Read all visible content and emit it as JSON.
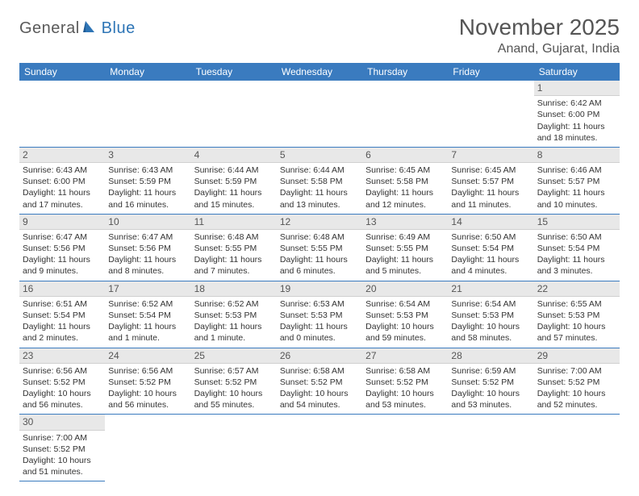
{
  "logo": {
    "general": "General",
    "blue": "Blue"
  },
  "title": "November 2025",
  "location": "Anand, Gujarat, India",
  "colors": {
    "header_bg": "#3a7bbf",
    "header_text": "#ffffff",
    "daynum_bg": "#e8e8e8",
    "border": "#3a7bbf",
    "logo_gray": "#5a5a5a",
    "logo_blue": "#2e75b6"
  },
  "weekdays": [
    "Sunday",
    "Monday",
    "Tuesday",
    "Wednesday",
    "Thursday",
    "Friday",
    "Saturday"
  ],
  "grid": {
    "rows": 6,
    "cols": 7,
    "first_day_col": 6,
    "num_days": 30
  },
  "days": {
    "1": {
      "sunrise": "6:42 AM",
      "sunset": "6:00 PM",
      "daylight": "11 hours and 18 minutes."
    },
    "2": {
      "sunrise": "6:43 AM",
      "sunset": "6:00 PM",
      "daylight": "11 hours and 17 minutes."
    },
    "3": {
      "sunrise": "6:43 AM",
      "sunset": "5:59 PM",
      "daylight": "11 hours and 16 minutes."
    },
    "4": {
      "sunrise": "6:44 AM",
      "sunset": "5:59 PM",
      "daylight": "11 hours and 15 minutes."
    },
    "5": {
      "sunrise": "6:44 AM",
      "sunset": "5:58 PM",
      "daylight": "11 hours and 13 minutes."
    },
    "6": {
      "sunrise": "6:45 AM",
      "sunset": "5:58 PM",
      "daylight": "11 hours and 12 minutes."
    },
    "7": {
      "sunrise": "6:45 AM",
      "sunset": "5:57 PM",
      "daylight": "11 hours and 11 minutes."
    },
    "8": {
      "sunrise": "6:46 AM",
      "sunset": "5:57 PM",
      "daylight": "11 hours and 10 minutes."
    },
    "9": {
      "sunrise": "6:47 AM",
      "sunset": "5:56 PM",
      "daylight": "11 hours and 9 minutes."
    },
    "10": {
      "sunrise": "6:47 AM",
      "sunset": "5:56 PM",
      "daylight": "11 hours and 8 minutes."
    },
    "11": {
      "sunrise": "6:48 AM",
      "sunset": "5:55 PM",
      "daylight": "11 hours and 7 minutes."
    },
    "12": {
      "sunrise": "6:48 AM",
      "sunset": "5:55 PM",
      "daylight": "11 hours and 6 minutes."
    },
    "13": {
      "sunrise": "6:49 AM",
      "sunset": "5:55 PM",
      "daylight": "11 hours and 5 minutes."
    },
    "14": {
      "sunrise": "6:50 AM",
      "sunset": "5:54 PM",
      "daylight": "11 hours and 4 minutes."
    },
    "15": {
      "sunrise": "6:50 AM",
      "sunset": "5:54 PM",
      "daylight": "11 hours and 3 minutes."
    },
    "16": {
      "sunrise": "6:51 AM",
      "sunset": "5:54 PM",
      "daylight": "11 hours and 2 minutes."
    },
    "17": {
      "sunrise": "6:52 AM",
      "sunset": "5:54 PM",
      "daylight": "11 hours and 1 minute."
    },
    "18": {
      "sunrise": "6:52 AM",
      "sunset": "5:53 PM",
      "daylight": "11 hours and 1 minute."
    },
    "19": {
      "sunrise": "6:53 AM",
      "sunset": "5:53 PM",
      "daylight": "11 hours and 0 minutes."
    },
    "20": {
      "sunrise": "6:54 AM",
      "sunset": "5:53 PM",
      "daylight": "10 hours and 59 minutes."
    },
    "21": {
      "sunrise": "6:54 AM",
      "sunset": "5:53 PM",
      "daylight": "10 hours and 58 minutes."
    },
    "22": {
      "sunrise": "6:55 AM",
      "sunset": "5:53 PM",
      "daylight": "10 hours and 57 minutes."
    },
    "23": {
      "sunrise": "6:56 AM",
      "sunset": "5:52 PM",
      "daylight": "10 hours and 56 minutes."
    },
    "24": {
      "sunrise": "6:56 AM",
      "sunset": "5:52 PM",
      "daylight": "10 hours and 56 minutes."
    },
    "25": {
      "sunrise": "6:57 AM",
      "sunset": "5:52 PM",
      "daylight": "10 hours and 55 minutes."
    },
    "26": {
      "sunrise": "6:58 AM",
      "sunset": "5:52 PM",
      "daylight": "10 hours and 54 minutes."
    },
    "27": {
      "sunrise": "6:58 AM",
      "sunset": "5:52 PM",
      "daylight": "10 hours and 53 minutes."
    },
    "28": {
      "sunrise": "6:59 AM",
      "sunset": "5:52 PM",
      "daylight": "10 hours and 53 minutes."
    },
    "29": {
      "sunrise": "7:00 AM",
      "sunset": "5:52 PM",
      "daylight": "10 hours and 52 minutes."
    },
    "30": {
      "sunrise": "7:00 AM",
      "sunset": "5:52 PM",
      "daylight": "10 hours and 51 minutes."
    }
  },
  "labels": {
    "sunrise": "Sunrise:",
    "sunset": "Sunset:",
    "daylight": "Daylight:"
  }
}
